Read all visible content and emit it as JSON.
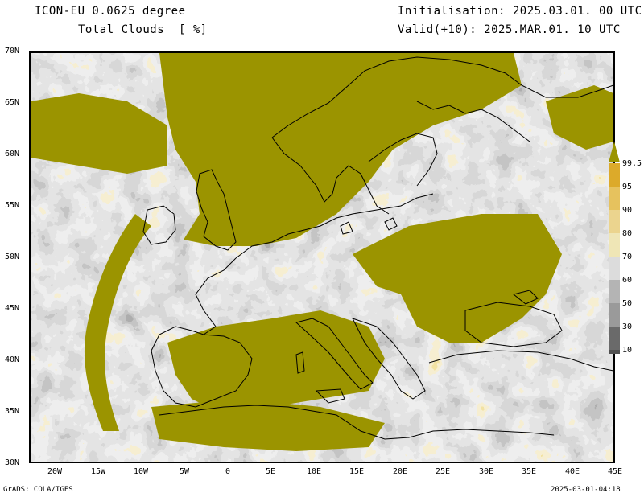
{
  "header": {
    "model": "ICON-EU 0.0625 degree",
    "variable": "Total Clouds  [ %]",
    "init": "Initialisation: 2025.03.01. 00 UTC",
    "valid": "Valid(+10): 2025.MAR.01. 10 UTC"
  },
  "map": {
    "lat_labels": [
      "70N",
      "65N",
      "60N",
      "55N",
      "50N",
      "45N",
      "40N",
      "35N",
      "30N"
    ],
    "lon_labels": [
      "20W",
      "15W",
      "10W",
      "5W",
      "0",
      "5E",
      "10E",
      "15E",
      "20E",
      "25E",
      "30E",
      "35E",
      "40E",
      "45E"
    ],
    "lat_range": [
      30,
      70
    ],
    "lon_range": [
      -23,
      45
    ],
    "projection": "lat-lon",
    "coastlines": true,
    "overcast_color": "#9b9400"
  },
  "colorbar": {
    "levels": [
      "99.5",
      "95",
      "90",
      "80",
      "70",
      "60",
      "50",
      "30",
      "10"
    ],
    "colors": [
      "#9b9400",
      "#dcaa2a",
      "#e6c25e",
      "#ebd48e",
      "#efe6b6",
      "#dcdcdc",
      "#b4b4b4",
      "#9a9a9a",
      "#6a6a6a",
      "#505050"
    ]
  },
  "footer": {
    "left": "GrADS: COLA/IGES",
    "right": "2025-03-01-04:18"
  }
}
